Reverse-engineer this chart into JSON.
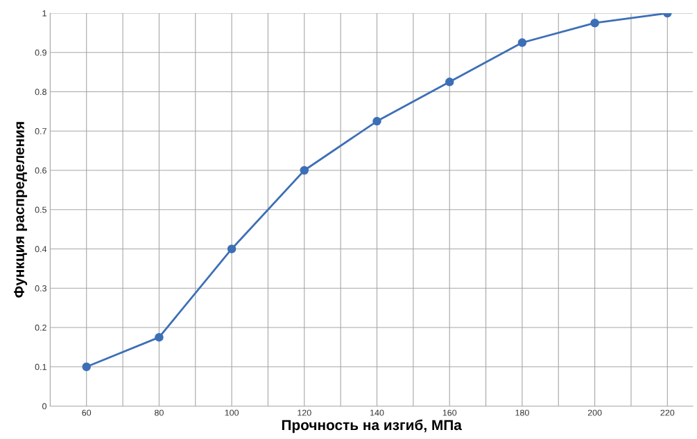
{
  "chart_data": {
    "type": "line",
    "xlabel": "Прочность на изгиб, МПа",
    "ylabel": "Функция распределения",
    "x": [
      60,
      80,
      100,
      120,
      140,
      160,
      180,
      200,
      220
    ],
    "series": [
      {
        "color": "#3d6fb6",
        "values": [
          0.1,
          0.175,
          0.4,
          0.6,
          0.725,
          0.825,
          0.925,
          0.975,
          1.0
        ]
      }
    ],
    "xlim": [
      50,
      227
    ],
    "xticks": [
      {
        "value": 50,
        "label": null
      },
      60,
      {
        "value": 70,
        "label": null
      },
      80,
      {
        "value": 90,
        "label": null
      },
      100,
      {
        "value": 110,
        "label": null
      },
      120,
      {
        "value": 130,
        "label": null
      },
      140,
      {
        "value": 150,
        "label": null
      },
      160,
      {
        "value": 170,
        "label": null
      },
      180,
      {
        "value": 190,
        "label": null
      },
      200,
      {
        "value": 210,
        "label": null
      },
      220
    ],
    "ylim": [
      0,
      1
    ],
    "yticks": [
      0,
      0.1,
      0.2,
      0.3,
      0.4,
      0.5,
      0.6,
      0.7,
      0.8,
      0.9,
      1
    ],
    "grid": true,
    "marker": "circle",
    "line_style": "solid"
  }
}
